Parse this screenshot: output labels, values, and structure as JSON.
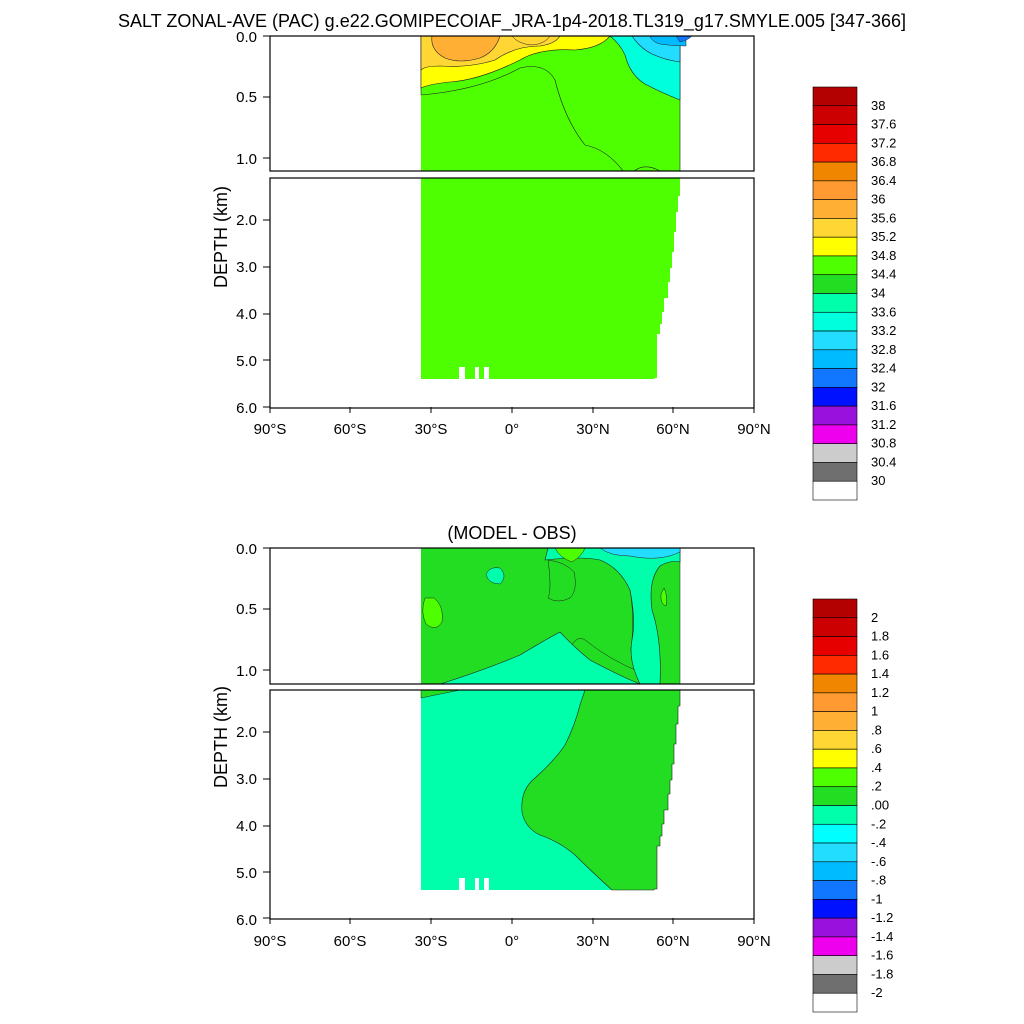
{
  "figure": {
    "title": "SALT ZONAL-AVE (PAC) g.e22.GOMIPECOIAF_JRA-1p4-2018.TL319_g17.SMYLE.005 [347-366]"
  },
  "chart_data": [
    {
      "type": "heatmap",
      "panel": "salinity",
      "title": "",
      "ylabel": "DEPTH (km)",
      "xlabel": "",
      "xlim": [
        -90,
        90
      ],
      "ylim": [
        6.0,
        0.0
      ],
      "x_ticks": [
        "90°S",
        "60°S",
        "30°S",
        "0°",
        "30°N",
        "60°N",
        "90°N"
      ],
      "y_ticks_upper": [
        "0.0",
        "0.5",
        "1.0"
      ],
      "y_ticks_lower": [
        "2.0",
        "3.0",
        "4.0",
        "5.0",
        "6.0"
      ],
      "colorbar_levels": [
        "38",
        "37.6",
        "37.2",
        "36.8",
        "36.4",
        "36",
        "35.6",
        "35.2",
        "34.8",
        "34.4",
        "34",
        "33.6",
        "33.2",
        "32.8",
        "32.4",
        "32",
        "31.6",
        "31.2",
        "30.8",
        "30.4",
        "30"
      ],
      "colorbar_colors": [
        "#b30000",
        "#cc0000",
        "#e60000",
        "#ff2a00",
        "#f08500",
        "#ff9a33",
        "#ffaf33",
        "#ffd633",
        "#ffff00",
        "#4dff00",
        "#22dd22",
        "#00ffaa",
        "#00ffdd",
        "#22ddff",
        "#00bbff",
        "#1177ff",
        "#0011ff",
        "#9911dd",
        "#ee00ee",
        "#cccccc",
        "#6f6f6f",
        "#ffffff"
      ]
    },
    {
      "type": "heatmap",
      "panel": "difference",
      "title": "(MODEL - OBS)",
      "ylabel": "DEPTH (km)",
      "xlabel": "",
      "xlim": [
        -90,
        90
      ],
      "ylim": [
        6.0,
        0.0
      ],
      "x_ticks": [
        "90°S",
        "60°S",
        "30°S",
        "0°",
        "30°N",
        "60°N",
        "90°N"
      ],
      "y_ticks_upper": [
        "0.0",
        "0.5",
        "1.0"
      ],
      "y_ticks_lower": [
        "2.0",
        "3.0",
        "4.0",
        "5.0",
        "6.0"
      ],
      "colorbar_levels": [
        "2",
        "1.8",
        "1.6",
        "1.4",
        "1.2",
        "1",
        ".8",
        ".6",
        ".4",
        ".2",
        ".00",
        "-.2",
        "-.4",
        "-.6",
        "-.8",
        "-1",
        "-1.2",
        "-1.4",
        "-1.6",
        "-1.8",
        "-2"
      ],
      "colorbar_colors": [
        "#b30000",
        "#cc0000",
        "#e60000",
        "#ff2a00",
        "#f08500",
        "#ff9a33",
        "#ffaf33",
        "#ffd633",
        "#ffff00",
        "#4dff00",
        "#22dd22",
        "#00ffaa",
        "#00ffff",
        "#22ddff",
        "#00bbff",
        "#1177ff",
        "#0011ff",
        "#9911dd",
        "#ee00ee",
        "#cccccc",
        "#6f6f6f",
        "#ffffff"
      ]
    }
  ]
}
